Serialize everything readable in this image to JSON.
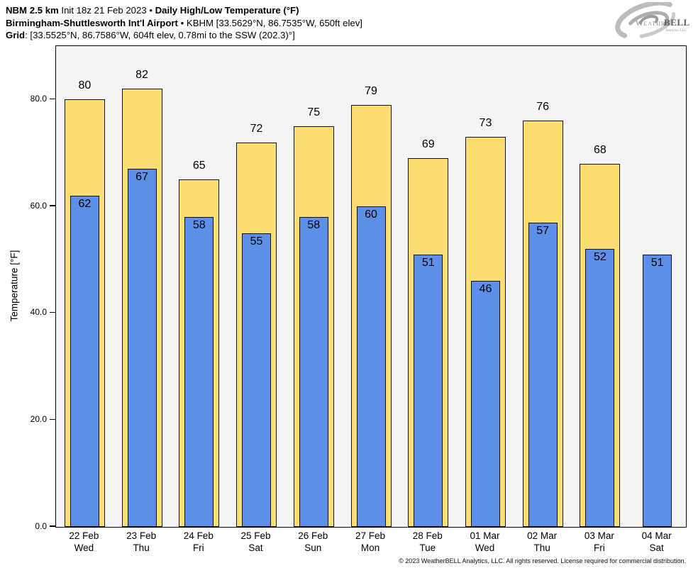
{
  "header": {
    "line1_bold": "NBM 2.5 km",
    "line1_regular": " Init 18z 21 Feb 2023 • ",
    "line1_bold2": "Daily High/Low Temperature (°F)",
    "line2_bold": "Birmingham-Shuttlesworth Int'l Airport",
    "line2_regular": " • KBHM [33.5629°N, 86.7535°W, 650ft elev]",
    "line3_bold": "Grid",
    "line3_regular": ": [33.5525°N, 86.7586°W, 604ft elev, 0.78mi to the SSW (202.3)°]"
  },
  "logo": {
    "brand_weather": "Weather",
    "brand_bell": "BELL",
    "tagline": "Analytics LLC"
  },
  "chart_data": {
    "type": "bar",
    "title": "NBM 2.5 km Init 18z 21 Feb 2023 • Daily High/Low Temperature (°F)",
    "subtitle": "Birmingham-Shuttlesworth Int'l Airport • KBHM [33.5629°N, 86.7535°W, 650ft elev]",
    "grid_note": "Grid: [33.5525°N, 86.7586°W, 604ft elev, 0.78mi to the SSW (202.3)°]",
    "categories": [
      "22 Feb",
      "23 Feb",
      "24 Feb",
      "25 Feb",
      "26 Feb",
      "27 Feb",
      "28 Feb",
      "01 Mar",
      "02 Mar",
      "03 Mar",
      "04 Mar"
    ],
    "weekdays": [
      "Wed",
      "Thu",
      "Fri",
      "Sat",
      "Sun",
      "Mon",
      "Tue",
      "Wed",
      "Thu",
      "Fri",
      "Sat"
    ],
    "series": [
      {
        "name": "High",
        "color": "#fbdd72",
        "edge": "#111111",
        "values": [
          80,
          82,
          65,
          72,
          75,
          79,
          69,
          73,
          76,
          68,
          null
        ]
      },
      {
        "name": "Low",
        "color": "#5e8fe8",
        "edge": "#111111",
        "values": [
          62,
          67,
          58,
          55,
          58,
          60,
          51,
          46,
          57,
          52,
          51
        ]
      }
    ],
    "ylabel": "Temperature [°F]",
    "xlabel": "",
    "ylim": [
      0,
      90
    ],
    "yticks": [
      0,
      20,
      40,
      60,
      80
    ],
    "ytick_labels": [
      "0.0",
      "20.0",
      "40.0",
      "60.0",
      "80.0"
    ],
    "grid": false,
    "legend": "none",
    "plot_bg": "#f4f4f4"
  },
  "footer": {
    "copyright": "© 2023 WeatherBELL Analytics, LLC. All rights reserved. License required for commercial distribution."
  }
}
